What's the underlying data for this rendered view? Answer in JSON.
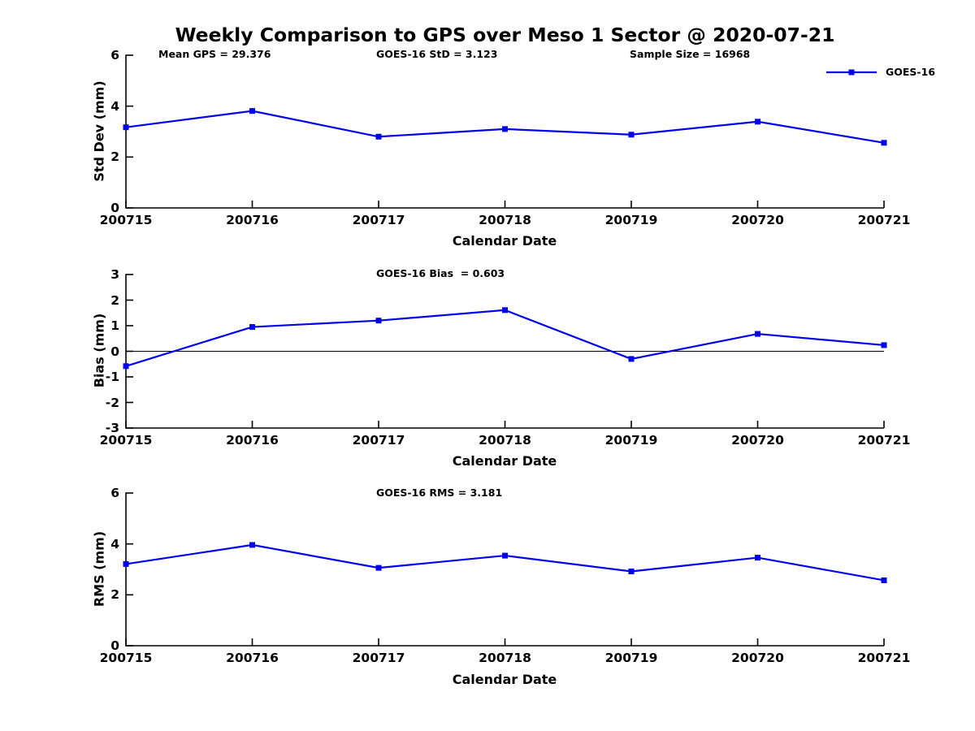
{
  "figure": {
    "title": "Weekly Comparison to GPS over Meso 1 Sector @ 2020-07-21",
    "background_color": "#ffffff",
    "text_color": "#000000",
    "line_color": "#0000ee"
  },
  "legend": {
    "position": "top-right",
    "entries": [
      {
        "label": "GOES-16",
        "color": "#0000ee",
        "marker": "filled-square"
      }
    ]
  },
  "annotations": {
    "mean_gps": "Mean GPS = 29.376",
    "goes_std": "GOES-16 StD = 3.123",
    "sample_size": "Sample Size = 16968",
    "goes_bias": "GOES-16 Bias  = 0.603",
    "goes_rms": "GOES-16 RMS = 3.181"
  },
  "chart_data": [
    {
      "id": "std-dev",
      "type": "line",
      "xlabel": "Calendar Date",
      "ylabel": "Std Dev (mm)",
      "categories": [
        "200715",
        "200716",
        "200717",
        "200718",
        "200719",
        "200720",
        "200721"
      ],
      "series": [
        {
          "name": "GOES-16",
          "values": [
            3.17,
            3.81,
            2.8,
            3.1,
            2.88,
            3.39,
            2.56
          ]
        }
      ],
      "ylim": [
        0,
        6
      ],
      "yticks": [
        0,
        2,
        4,
        6
      ],
      "grid": false,
      "zero_line": false
    },
    {
      "id": "bias",
      "type": "line",
      "xlabel": "Calendar Date",
      "ylabel": "Bias (mm)",
      "categories": [
        "200715",
        "200716",
        "200717",
        "200718",
        "200719",
        "200720",
        "200721"
      ],
      "series": [
        {
          "name": "GOES-16",
          "values": [
            -0.58,
            0.95,
            1.2,
            1.61,
            -0.3,
            0.68,
            0.24
          ]
        }
      ],
      "ylim": [
        -3,
        3
      ],
      "yticks": [
        3,
        2,
        1,
        0,
        -1,
        -2,
        -3
      ],
      "grid": false,
      "zero_line": true
    },
    {
      "id": "rms",
      "type": "line",
      "xlabel": "Calendar Date",
      "ylabel": "RMS (mm)",
      "categories": [
        "200715",
        "200716",
        "200717",
        "200718",
        "200719",
        "200720",
        "200721"
      ],
      "series": [
        {
          "name": "GOES-16",
          "values": [
            3.21,
            3.96,
            3.06,
            3.54,
            2.92,
            3.46,
            2.57
          ]
        }
      ],
      "ylim": [
        0,
        6
      ],
      "yticks": [
        0,
        2,
        4,
        6
      ],
      "grid": false,
      "zero_line": false
    }
  ]
}
